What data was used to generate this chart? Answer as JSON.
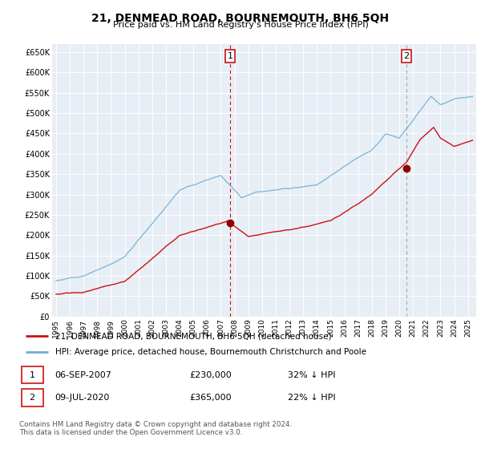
{
  "title": "21, DENMEAD ROAD, BOURNEMOUTH, BH6 5QH",
  "subtitle": "Price paid vs. HM Land Registry's House Price Index (HPI)",
  "bg_color": "#e8eef5",
  "plot_bg_color": "#e8eef5",
  "hpi_color": "#6baed6",
  "price_color": "#cc1111",
  "marker_color": "#8b0000",
  "grid_color": "#c8d4e0",
  "ylim": [
    0,
    670000
  ],
  "yticks": [
    0,
    50000,
    100000,
    150000,
    200000,
    250000,
    300000,
    350000,
    400000,
    450000,
    500000,
    550000,
    600000,
    650000
  ],
  "xlim_start": 1994.7,
  "xlim_end": 2025.6,
  "transaction1": {
    "year": 2007.67,
    "price": 230000,
    "label": "1",
    "date": "06-SEP-2007"
  },
  "transaction2": {
    "year": 2020.52,
    "price": 365000,
    "label": "2",
    "date": "09-JUL-2020"
  },
  "legend_line1": "21, DENMEAD ROAD, BOURNEMOUTH, BH6 5QH (detached house)",
  "legend_line2": "HPI: Average price, detached house, Bournemouth Christchurch and Poole",
  "note1_label": "1",
  "note1_date": "06-SEP-2007",
  "note1_price": "£230,000",
  "note1_pct": "32% ↓ HPI",
  "note2_label": "2",
  "note2_date": "09-JUL-2020",
  "note2_price": "£365,000",
  "note2_pct": "22% ↓ HPI",
  "footer": "Contains HM Land Registry data © Crown copyright and database right 2024.\nThis data is licensed under the Open Government Licence v3.0."
}
